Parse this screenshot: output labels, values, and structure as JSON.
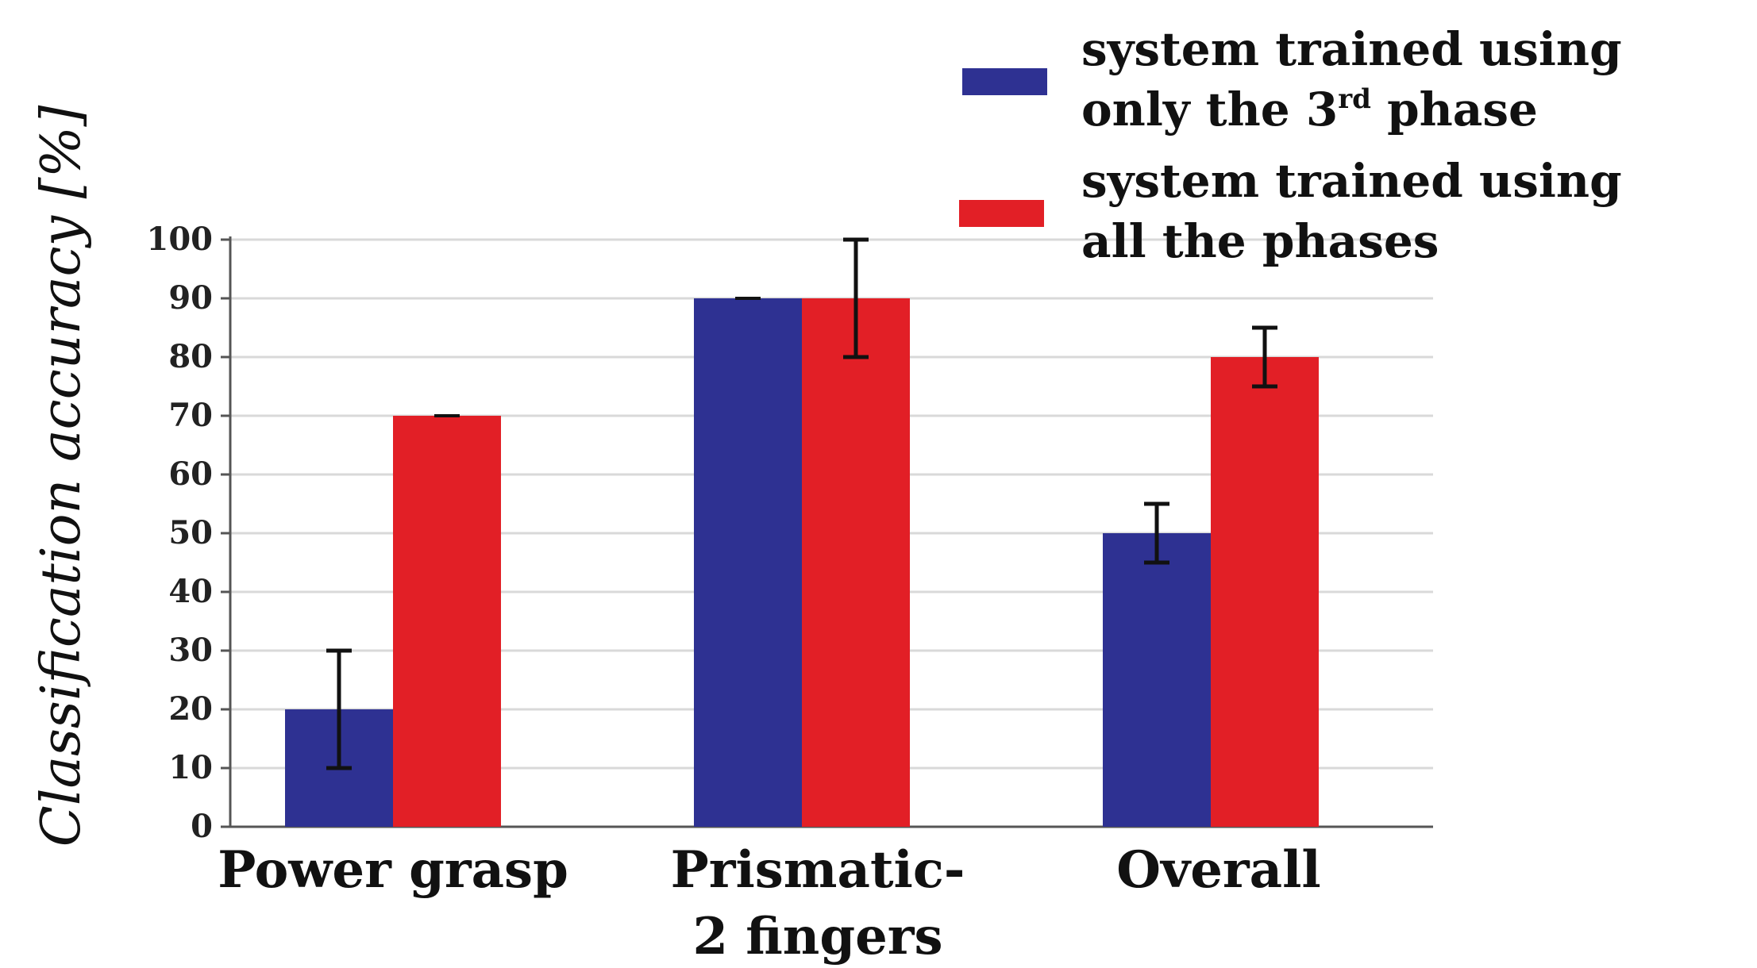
{
  "chart_data": {
    "type": "bar",
    "title": "",
    "xlabel": "",
    "ylabel": "Classification accuracy [%]",
    "ylim": [
      0,
      100
    ],
    "yticks": [
      0,
      10,
      20,
      30,
      40,
      50,
      60,
      70,
      80,
      90,
      100
    ],
    "grid": true,
    "legend_position": "top-right",
    "categories": [
      [
        "Power grasp"
      ],
      [
        "Prismatic-",
        "2 fingers"
      ],
      [
        "Overall"
      ]
    ],
    "series": [
      {
        "name": "system trained using only the 3rd phase",
        "legend_lines": [
          "system trained using",
          "only the 3",
          "rd",
          " phase"
        ],
        "color": "#2e3192",
        "values": [
          20,
          90,
          50
        ],
        "errors": [
          10,
          0,
          5
        ]
      },
      {
        "name": "system trained using all the phases",
        "legend_lines": [
          "system trained using",
          "all the phases"
        ],
        "color": "#e21f26",
        "values": [
          70,
          90,
          80
        ],
        "errors": [
          0,
          10,
          5
        ]
      }
    ]
  }
}
